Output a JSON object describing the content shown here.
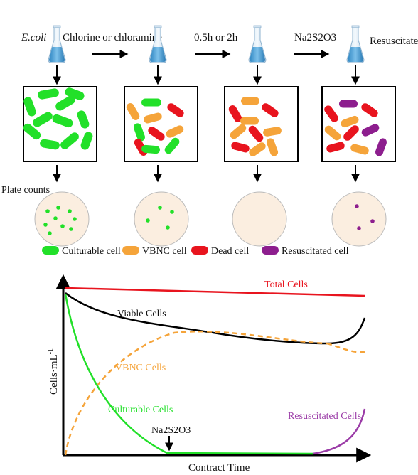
{
  "header": {
    "ecoli": "E.coli",
    "treatment": "Chlorine or chloramine",
    "time": "0.5h or 2h",
    "neutralizer": "Na2S2O3",
    "resuscitated": "Resuscitated"
  },
  "plate_counts_label": "Plate counts",
  "legend": {
    "culturable": "Culturable cell",
    "vbnc": "VBNC cell",
    "dead": "Dead cell",
    "resuscitated": "Resuscitated cell"
  },
  "colors": {
    "culturable": "#22e029",
    "vbnc": "#f5a43a",
    "dead": "#e8141e",
    "resuscitated": "#8d1e8e",
    "total_line": "#e8141e",
    "viable_line": "#000000",
    "plate": "#fbeee0",
    "flask": "#4a9fd0"
  },
  "plates": [
    {
      "colony_color": "culturable",
      "colony_count": 9
    },
    {
      "colony_color": "culturable",
      "colony_count": 4
    },
    {
      "colony_color": "none",
      "colony_count": 0
    },
    {
      "colony_color": "resuscitated",
      "colony_count": 3
    }
  ],
  "chart": {
    "ylabel": "Cells·mL",
    "ylabel_sup": "-1",
    "xlabel": "Contract Time",
    "total": "Total Cells",
    "viable": "Viable Cells",
    "vbnc": "VBNC Cells",
    "culturable": "Culturable Cells",
    "resuscitated": "Resuscitated Cells",
    "neutralizer_marker": "Na2S2O3"
  }
}
